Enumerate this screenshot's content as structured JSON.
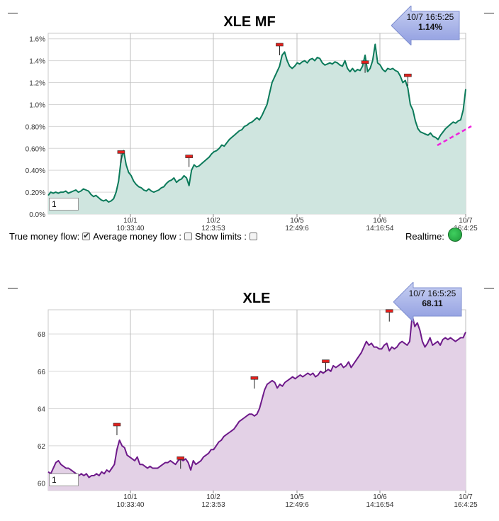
{
  "chart_data": [
    {
      "type": "area",
      "title": "XLE MF",
      "color": "#0b7a5a",
      "fill": "#cfe5df",
      "ylim": [
        0,
        1.65
      ],
      "yticks": [
        "0.0%",
        "0.20%",
        "0.40%",
        "0.60%",
        "0.80%",
        "1.0%",
        "1.2%",
        "1.4%",
        "1.6%"
      ],
      "ytick_values": [
        0,
        0.2,
        0.4,
        0.6,
        0.8,
        1.0,
        1.2,
        1.4,
        1.6
      ],
      "xticks": [
        {
          "line1": "10/1",
          "line2": "10:33:40"
        },
        {
          "line1": "10/2",
          "line2": "12:3:53"
        },
        {
          "line1": "10/5",
          "line2": "12:49:6"
        },
        {
          "line1": "10/6",
          "line2": "14:16:54"
        },
        {
          "line1": "10/7",
          "line2": "16:4:25"
        }
      ],
      "series": [
        {
          "values": [
            0.17,
            0.2,
            0.19,
            0.2,
            0.19,
            0.2,
            0.2,
            0.21,
            0.19,
            0.2,
            0.21,
            0.22,
            0.2,
            0.21,
            0.23,
            0.22,
            0.21,
            0.18,
            0.16,
            0.17,
            0.15,
            0.13,
            0.12,
            0.13,
            0.11,
            0.12,
            0.14,
            0.2,
            0.3,
            0.5,
            0.58,
            0.45,
            0.38,
            0.35,
            0.3,
            0.27,
            0.25,
            0.24,
            0.22,
            0.21,
            0.23,
            0.21,
            0.2,
            0.21,
            0.22,
            0.24,
            0.25,
            0.28,
            0.3,
            0.31,
            0.33,
            0.29,
            0.31,
            0.32,
            0.35,
            0.33,
            0.26,
            0.4,
            0.45,
            0.43,
            0.44,
            0.46,
            0.48,
            0.5,
            0.52,
            0.55,
            0.57,
            0.58,
            0.6,
            0.63,
            0.62,
            0.65,
            0.68,
            0.7,
            0.72,
            0.74,
            0.76,
            0.77,
            0.8,
            0.81,
            0.83,
            0.84,
            0.86,
            0.88,
            0.86,
            0.9,
            0.95,
            1.0,
            1.1,
            1.2,
            1.25,
            1.3,
            1.35,
            1.45,
            1.48,
            1.4,
            1.35,
            1.33,
            1.35,
            1.38,
            1.37,
            1.39,
            1.4,
            1.38,
            1.41,
            1.42,
            1.4,
            1.43,
            1.42,
            1.38,
            1.36,
            1.37,
            1.38,
            1.37,
            1.39,
            1.38,
            1.36,
            1.35,
            1.4,
            1.33,
            1.3,
            1.33,
            1.3,
            1.32,
            1.31,
            1.35,
            1.45,
            1.3,
            1.33,
            1.4,
            1.55,
            1.38,
            1.36,
            1.32,
            1.3,
            1.33,
            1.32,
            1.33,
            1.31,
            1.3,
            1.26,
            1.2,
            1.22,
            1.15,
            1.0,
            0.95,
            0.85,
            0.78,
            0.75,
            0.74,
            0.73,
            0.72,
            0.74,
            0.71,
            0.7,
            0.68,
            0.72,
            0.75,
            0.78,
            0.8,
            0.82,
            0.84,
            0.83,
            0.85,
            0.86,
            0.95,
            1.14
          ]
        }
      ],
      "flags": [
        {
          "index": 29,
          "value": 0.56
        },
        {
          "index": 56,
          "value": 0.52
        },
        {
          "index": 92,
          "value": 1.54
        },
        {
          "index": 126,
          "value": 1.38
        },
        {
          "index": 143,
          "value": 1.26
        }
      ],
      "callout": {
        "time": "10/7 16:5:25",
        "value": "1.14%"
      },
      "zoom_value": "1"
    },
    {
      "type": "area",
      "title": "XLE",
      "color": "#6e1a8a",
      "fill": "#e3d1e6",
      "ylim": [
        59.6,
        69.3
      ],
      "yticks": [
        "60",
        "62",
        "64",
        "66",
        "68"
      ],
      "ytick_values": [
        60,
        62,
        64,
        66,
        68
      ],
      "xticks": [
        {
          "line1": "10/1",
          "line2": "10:33:40"
        },
        {
          "line1": "10/2",
          "line2": "12:3:53"
        },
        {
          "line1": "10/5",
          "line2": "12:49:6"
        },
        {
          "line1": "10/6",
          "line2": "14:16:54"
        },
        {
          "line1": "10/7",
          "line2": "16:4:25"
        }
      ],
      "series": [
        {
          "values": [
            60.6,
            60.5,
            60.8,
            61.1,
            61.2,
            61.0,
            60.9,
            60.8,
            60.8,
            60.7,
            60.6,
            60.5,
            60.4,
            60.5,
            60.4,
            60.5,
            60.3,
            60.4,
            60.4,
            60.5,
            60.4,
            60.6,
            60.5,
            60.7,
            60.6,
            60.8,
            61.0,
            61.8,
            62.3,
            62.0,
            61.9,
            61.5,
            61.4,
            61.3,
            61.2,
            61.4,
            61.0,
            61.0,
            60.9,
            60.8,
            60.9,
            60.8,
            60.8,
            60.8,
            60.9,
            61.0,
            61.1,
            61.1,
            61.2,
            61.1,
            61.0,
            61.2,
            61.3,
            61.2,
            61.3,
            61.1,
            60.7,
            61.2,
            61.0,
            61.1,
            61.2,
            61.4,
            61.5,
            61.6,
            61.8,
            61.8,
            62.0,
            62.2,
            62.3,
            62.5,
            62.6,
            62.7,
            62.8,
            62.9,
            63.1,
            63.3,
            63.4,
            63.5,
            63.6,
            63.7,
            63.7,
            63.6,
            63.7,
            64.0,
            64.5,
            65.0,
            65.3,
            65.4,
            65.5,
            65.4,
            65.1,
            65.3,
            65.2,
            65.4,
            65.5,
            65.6,
            65.7,
            65.6,
            65.7,
            65.8,
            65.7,
            65.8,
            65.9,
            65.8,
            65.9,
            65.7,
            65.8,
            66.0,
            65.9,
            66.0,
            66.1,
            66.0,
            66.3,
            66.2,
            66.3,
            66.4,
            66.2,
            66.3,
            66.5,
            66.2,
            66.4,
            66.6,
            66.8,
            67.0,
            67.3,
            67.6,
            67.4,
            67.5,
            67.3,
            67.3,
            67.2,
            67.2,
            67.4,
            67.5,
            67.1,
            67.3,
            67.2,
            67.3,
            67.5,
            67.6,
            67.5,
            67.4,
            67.6,
            69.0,
            68.4,
            68.6,
            68.2,
            67.6,
            67.3,
            67.5,
            67.8,
            67.4,
            67.5,
            67.6,
            67.4,
            67.7,
            67.8,
            67.7,
            67.8,
            67.7,
            67.6,
            67.7,
            67.8,
            67.8,
            68.1
          ]
        }
      ],
      "flags": [
        {
          "index": 27,
          "value": 63.1
        },
        {
          "index": 52,
          "value": 61.3
        },
        {
          "index": 81,
          "value": 65.6
        },
        {
          "index": 109,
          "value": 66.5
        },
        {
          "index": 134,
          "value": 69.2
        }
      ],
      "callout": {
        "time": "10/7 16:5:25",
        "value": "68.11"
      },
      "zoom_value": "1"
    }
  ],
  "controls": {
    "true_mf_label": "True money flow:",
    "avg_mf_label": "Average money flow :",
    "limits_label": "Show limits :",
    "realtime_label": "Realtime:"
  }
}
